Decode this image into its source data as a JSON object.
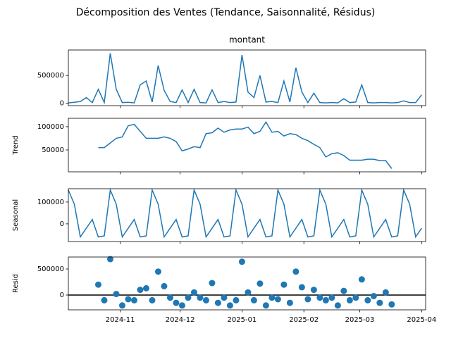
{
  "title": "Décomposition des Ventes (Tendance, Saisonnalité, Résidus)",
  "chart_data": [
    {
      "type": "line",
      "title": "montant",
      "color": "#1f77b4",
      "x": [
        0,
        3,
        6,
        9,
        12,
        15,
        18,
        21,
        24,
        27,
        30,
        33,
        36,
        39,
        42,
        45,
        48,
        51,
        54,
        57,
        60,
        63,
        66,
        69,
        72,
        75,
        78,
        81,
        84,
        87,
        90,
        93,
        96,
        99,
        102,
        105,
        108,
        111,
        114,
        117,
        120,
        123,
        126,
        129,
        132,
        135,
        138,
        141,
        144,
        147,
        150,
        153,
        156,
        159,
        162,
        165,
        168,
        171,
        174,
        177
      ],
      "values": [
        5000,
        15000,
        30000,
        100000,
        10000,
        250000,
        10000,
        900000,
        250000,
        10000,
        15000,
        5000,
        330000,
        400000,
        20000,
        680000,
        230000,
        30000,
        10000,
        240000,
        10000,
        250000,
        10000,
        5000,
        240000,
        10000,
        30000,
        10000,
        20000,
        870000,
        200000,
        100000,
        500000,
        20000,
        30000,
        10000,
        400000,
        20000,
        640000,
        200000,
        10000,
        180000,
        10000,
        5000,
        10000,
        5000,
        80000,
        10000,
        20000,
        330000,
        10000,
        5000,
        10000,
        10000,
        5000,
        10000,
        40000,
        10000,
        10000,
        150000
      ],
      "xlim": [
        0,
        179
      ],
      "ylim": [
        -45000,
        960000
      ],
      "yticks": [
        0,
        500000
      ]
    },
    {
      "type": "line",
      "y_label": "Trend",
      "color": "#1f77b4",
      "x": [
        0,
        3,
        6,
        9,
        12,
        15,
        18,
        21,
        24,
        27,
        30,
        33,
        36,
        39,
        42,
        45,
        48,
        51,
        54,
        57,
        60,
        63,
        66,
        69,
        72,
        75,
        78,
        81,
        84,
        87,
        90,
        93,
        96,
        99,
        102,
        105,
        108,
        111,
        114,
        117,
        120,
        123,
        126,
        129,
        132,
        135,
        138,
        141,
        144,
        147,
        150,
        153,
        156,
        159,
        162,
        165,
        168,
        171,
        174,
        177
      ],
      "values": [
        null,
        null,
        null,
        null,
        null,
        55000,
        55000,
        65000,
        75000,
        78000,
        102000,
        105000,
        90000,
        75000,
        75000,
        75000,
        78000,
        75000,
        68000,
        48000,
        52000,
        57000,
        55000,
        85000,
        87000,
        97000,
        88000,
        93000,
        95000,
        95000,
        99000,
        85000,
        90000,
        110000,
        88000,
        90000,
        80000,
        85000,
        83000,
        75000,
        70000,
        62000,
        55000,
        35000,
        42000,
        44000,
        38000,
        28000,
        28000,
        28000,
        30000,
        30000,
        27000,
        27000,
        10000,
        null,
        null,
        null,
        null,
        null
      ],
      "xlim": [
        0,
        179
      ],
      "ylim": [
        3000,
        118000
      ],
      "yticks": [
        50000,
        100000
      ]
    },
    {
      "type": "line",
      "y_label": "Seasonal",
      "color": "#1f77b4",
      "x": [
        0,
        3,
        6,
        9,
        12,
        15,
        18,
        21,
        24,
        27,
        30,
        33,
        36,
        39,
        42,
        45,
        48,
        51,
        54,
        57,
        60,
        63,
        66,
        69,
        72,
        75,
        78,
        81,
        84,
        87,
        90,
        93,
        96,
        99,
        102,
        105,
        108,
        111,
        114,
        117,
        120,
        123,
        126,
        129,
        132,
        135,
        138,
        141,
        144,
        147,
        150,
        153,
        156,
        159,
        162,
        165,
        168,
        171,
        174,
        177
      ],
      "values": [
        155000,
        90000,
        -60000,
        -20000,
        20000,
        -60000,
        -55000,
        155000,
        90000,
        -60000,
        -20000,
        20000,
        -60000,
        -55000,
        155000,
        90000,
        -60000,
        -20000,
        20000,
        -60000,
        -55000,
        155000,
        90000,
        -60000,
        -20000,
        20000,
        -60000,
        -55000,
        155000,
        90000,
        -60000,
        -20000,
        20000,
        -60000,
        -55000,
        155000,
        90000,
        -60000,
        -20000,
        20000,
        -60000,
        -55000,
        155000,
        90000,
        -60000,
        -20000,
        20000,
        -60000,
        -55000,
        155000,
        90000,
        -60000,
        -20000,
        20000,
        -60000,
        -55000,
        155000,
        90000,
        -60000,
        -20000
      ],
      "xlim": [
        0,
        179
      ],
      "ylim": [
        -81000,
        161000
      ],
      "yticks": [
        0,
        100000
      ]
    },
    {
      "type": "scatter",
      "y_label": "Resid",
      "color": "#1f77b4",
      "hline": 0,
      "x": [
        0,
        3,
        6,
        9,
        12,
        15,
        18,
        21,
        24,
        27,
        30,
        33,
        36,
        39,
        42,
        45,
        48,
        51,
        54,
        57,
        60,
        63,
        66,
        69,
        72,
        75,
        78,
        81,
        84,
        87,
        90,
        93,
        96,
        99,
        102,
        105,
        108,
        111,
        114,
        117,
        120,
        123,
        126,
        129,
        132,
        135,
        138,
        141,
        144,
        147,
        150,
        153,
        156,
        159,
        162,
        165,
        168,
        171,
        174,
        177
      ],
      "values": [
        null,
        null,
        null,
        null,
        null,
        200000,
        -100000,
        690000,
        20000,
        -200000,
        -80000,
        -100000,
        100000,
        130000,
        -100000,
        450000,
        170000,
        -50000,
        -150000,
        -200000,
        -50000,
        50000,
        -50000,
        -100000,
        230000,
        -150000,
        -50000,
        -200000,
        -100000,
        640000,
        50000,
        -100000,
        220000,
        -200000,
        -50000,
        -80000,
        200000,
        -150000,
        450000,
        150000,
        -80000,
        100000,
        -50000,
        -100000,
        -50000,
        -200000,
        80000,
        -100000,
        -50000,
        300000,
        -100000,
        -20000,
        -150000,
        50000,
        -180000,
        null,
        null,
        null,
        null,
        null
      ],
      "xlim": [
        0,
        179
      ],
      "ylim": [
        -284000,
        730000
      ],
      "yticks": [
        0,
        500000
      ],
      "xticks": [
        {
          "value": 26,
          "label": "2024-11"
        },
        {
          "value": 56,
          "label": "2024-12"
        },
        {
          "value": 87,
          "label": "2025-01"
        },
        {
          "value": 118,
          "label": "2025-02"
        },
        {
          "value": 146,
          "label": "2025-03"
        },
        {
          "value": 177,
          "label": "2025-04"
        }
      ]
    }
  ]
}
